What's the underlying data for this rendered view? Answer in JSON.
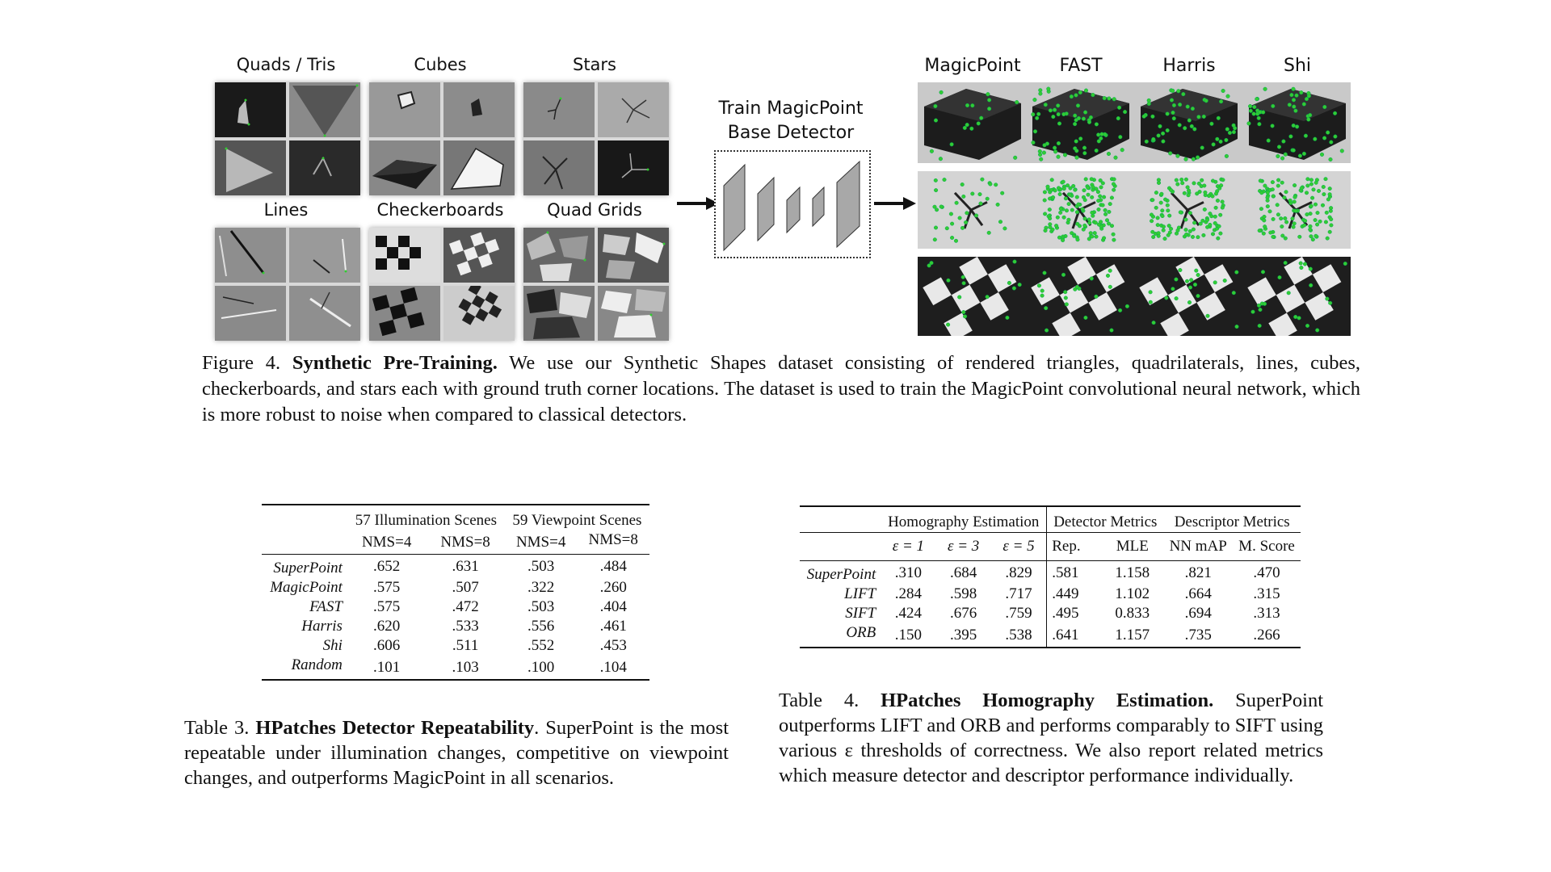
{
  "figure": {
    "categories": [
      "Quads / Tris",
      "Cubes",
      "Stars",
      "Lines",
      "Checkerboards",
      "Quad Grids"
    ],
    "network_label_line1": "Train MagicPoint",
    "network_label_line2": "Base Detector",
    "detector_columns": [
      "MagicPoint",
      "FAST",
      "Harris",
      "Shi"
    ],
    "caption_prefix": "Figure 4.",
    "caption_title": "Synthetic Pre-Training.",
    "caption_body": "We use our Synthetic Shapes dataset consisting of rendered triangles, quadrilaterals, lines, cubes, checkerboards, and stars each with ground truth corner locations. The dataset is used to train the MagicPoint convolutional neural network, which is more robust to noise when compared to classical detectors.",
    "colors": {
      "corner_green": "#33cc33",
      "arrow": "#111111"
    }
  },
  "table3": {
    "group_headers": [
      "57 Illumination Scenes",
      "59 Viewpoint Scenes"
    ],
    "sub_headers": [
      "NMS=4",
      "NMS=8",
      "NMS=4",
      "NMS=8"
    ],
    "rows": [
      {
        "name": "SuperPoint",
        "v": [
          ".652",
          ".631",
          ".503",
          ".484"
        ],
        "bold": [
          true,
          true,
          false,
          true
        ]
      },
      {
        "name": "MagicPoint",
        "v": [
          ".575",
          ".507",
          ".322",
          ".260"
        ],
        "bold": [
          false,
          false,
          false,
          false
        ]
      },
      {
        "name": "FAST",
        "v": [
          ".575",
          ".472",
          ".503",
          ".404"
        ],
        "bold": [
          false,
          false,
          false,
          false
        ]
      },
      {
        "name": "Harris",
        "v": [
          ".620",
          ".533",
          ".556",
          ".461"
        ],
        "bold": [
          false,
          false,
          true,
          false
        ]
      },
      {
        "name": "Shi",
        "v": [
          ".606",
          ".511",
          ".552",
          ".453"
        ],
        "bold": [
          false,
          false,
          false,
          false
        ]
      },
      {
        "name": "Random",
        "v": [
          ".101",
          ".103",
          ".100",
          ".104"
        ],
        "bold": [
          false,
          false,
          false,
          false
        ]
      }
    ],
    "caption_prefix": "Table 3.",
    "caption_title": "HPatches Detector Repeatability",
    "caption_body": ". SuperPoint is the most repeatable under illumination changes, competitive on viewpoint changes, and outperforms MagicPoint in all scenarios."
  },
  "table4": {
    "group_headers": [
      "Homography Estimation",
      "Detector Metrics",
      "Descriptor Metrics"
    ],
    "sub_headers": [
      "ε = 1",
      "ε = 3",
      "ε = 5",
      "Rep.",
      "MLE",
      "NN mAP",
      "M. Score"
    ],
    "rows": [
      {
        "name": "SuperPoint",
        "v": [
          ".310",
          ".684",
          ".829",
          ".581",
          "1.158",
          ".821",
          ".470"
        ],
        "bold": [
          false,
          true,
          true,
          false,
          false,
          true,
          true
        ]
      },
      {
        "name": "LIFT",
        "v": [
          ".284",
          ".598",
          ".717",
          ".449",
          "1.102",
          ".664",
          ".315"
        ],
        "bold": [
          false,
          false,
          false,
          false,
          false,
          false,
          false
        ]
      },
      {
        "name": "SIFT",
        "v": [
          ".424",
          ".676",
          ".759",
          ".495",
          "0.833",
          ".694",
          ".313"
        ],
        "bold": [
          true,
          false,
          false,
          false,
          true,
          false,
          false
        ]
      },
      {
        "name": "ORB",
        "v": [
          ".150",
          ".395",
          ".538",
          ".641",
          "1.157",
          ".735",
          ".266"
        ],
        "bold": [
          false,
          false,
          false,
          true,
          false,
          false,
          false
        ]
      }
    ],
    "caption_prefix": "Table 4.",
    "caption_title": "HPatches Homography Estimation.",
    "caption_body": "SuperPoint outperforms LIFT and ORB and performs comparably to SIFT using various ε thresholds of correctness. We also report related metrics which measure detector and descriptor performance individually."
  }
}
